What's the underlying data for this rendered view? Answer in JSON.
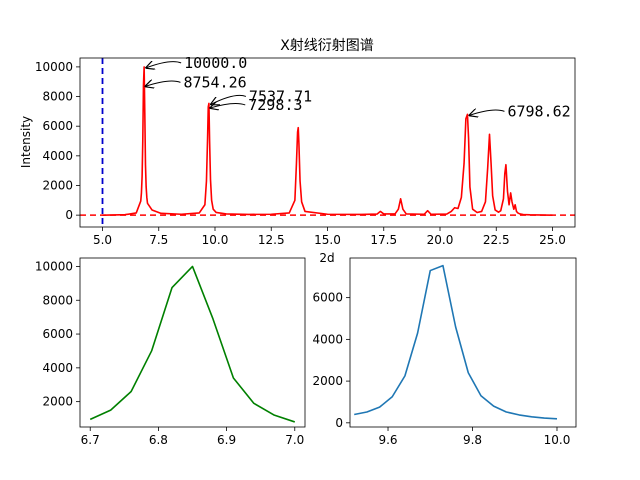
{
  "chart_data": [
    {
      "type": "line",
      "title": "X射线衍射图谱",
      "xlabel": "",
      "ylabel": "Intensity",
      "xlim": [
        4.0,
        26.0
      ],
      "ylim": [
        -800,
        10600
      ],
      "xticks": [
        5.0,
        7.5,
        10.0,
        12.5,
        15.0,
        17.5,
        20.0,
        22.5,
        25.0
      ],
      "xtick_labels": [
        "5.0",
        "7.5",
        "10.0",
        "12.5",
        "15.0",
        "17.5",
        "20.0",
        "22.5",
        "25.0"
      ],
      "yticks": [
        0,
        2000,
        4000,
        6000,
        8000,
        10000
      ],
      "ytick_labels": [
        "0",
        "2000",
        "4000",
        "6000",
        "8000",
        "10000"
      ],
      "series": [
        {
          "color": "#ff0000",
          "x": [
            5.0,
            6.0,
            6.5,
            6.7,
            6.73,
            6.76,
            6.79,
            6.82,
            6.85,
            6.88,
            6.91,
            6.94,
            6.97,
            7.0,
            7.2,
            7.6,
            8.5,
            9.3,
            9.55,
            9.62,
            9.67,
            9.7,
            9.73,
            9.76,
            9.8,
            9.85,
            9.92,
            10.05,
            10.5,
            11.5,
            12.5,
            13.3,
            13.55,
            13.62,
            13.67,
            13.7,
            13.73,
            13.78,
            13.85,
            14.0,
            15.0,
            16.5,
            17.2,
            17.35,
            17.5,
            18.0,
            18.15,
            18.25,
            18.35,
            18.5,
            19.3,
            19.45,
            19.6,
            20.3,
            20.5,
            20.65,
            20.8,
            20.95,
            21.07,
            21.15,
            21.22,
            21.27,
            21.33,
            21.45,
            21.65,
            21.85,
            22.02,
            22.12,
            22.2,
            22.27,
            22.34,
            22.45,
            22.6,
            22.7,
            22.82,
            22.88,
            22.93,
            23.0,
            23.07,
            23.14,
            23.2,
            23.28,
            23.34,
            23.4,
            23.46,
            23.55,
            23.7,
            24.0,
            25.0
          ],
          "y": [
            0,
            30,
            150,
            950,
            1500,
            2600,
            5000,
            8754,
            10000,
            6900,
            3400,
            1900,
            1200,
            800,
            350,
            120,
            60,
            150,
            700,
            2300,
            5200,
            7298,
            7537,
            5000,
            2400,
            1000,
            400,
            180,
            80,
            50,
            60,
            150,
            1000,
            3500,
            5600,
            5900,
            4800,
            2300,
            900,
            250,
            60,
            50,
            70,
            250,
            80,
            80,
            400,
            1100,
            400,
            80,
            60,
            300,
            60,
            70,
            250,
            500,
            450,
            1200,
            3500,
            6500,
            6799,
            5200,
            1900,
            400,
            180,
            250,
            900,
            3200,
            5450,
            3500,
            1300,
            350,
            200,
            300,
            1100,
            2800,
            3400,
            1600,
            700,
            1500,
            900,
            400,
            700,
            250,
            150,
            80,
            40,
            20,
            0
          ]
        }
      ],
      "hlines": [
        {
          "y": 0,
          "color": "#ff0000",
          "style": "dashed"
        }
      ],
      "vlines": [
        {
          "x": 5.0,
          "color": "#0000cc",
          "style": "dashed"
        }
      ],
      "annotations": [
        {
          "text": "10000.0",
          "x": 6.85,
          "y": 10000
        },
        {
          "text": "8754.26",
          "x": 6.82,
          "y": 8754
        },
        {
          "text": "7537.71",
          "x": 9.73,
          "y": 7537
        },
        {
          "text": "7298.3",
          "x": 9.7,
          "y": 7298
        },
        {
          "text": "6798.62",
          "x": 21.22,
          "y": 6799
        }
      ]
    },
    {
      "type": "line",
      "title": "",
      "xlabel": "",
      "ylabel": "",
      "xlim": [
        6.685,
        7.015
      ],
      "ylim": [
        500,
        10500
      ],
      "xticks": [
        6.7,
        6.8,
        6.9,
        7.0
      ],
      "xtick_labels": [
        "6.7",
        "6.8",
        "6.9",
        "7.0"
      ],
      "yticks": [
        2000,
        4000,
        6000,
        8000,
        10000
      ],
      "ytick_labels": [
        "2000",
        "4000",
        "6000",
        "8000",
        "10000"
      ],
      "series": [
        {
          "color": "#008000",
          "x": [
            6.7,
            6.73,
            6.76,
            6.79,
            6.82,
            6.85,
            6.88,
            6.91,
            6.94,
            6.97,
            7.0
          ],
          "y": [
            950,
            1500,
            2600,
            5000,
            8754,
            10000,
            6900,
            3400,
            1900,
            1200,
            800
          ]
        }
      ]
    },
    {
      "type": "line",
      "title": "2d",
      "xlabel": "",
      "ylabel": "",
      "xlim": [
        9.51,
        10.045
      ],
      "ylim": [
        -200,
        7900
      ],
      "xticks": [
        9.6,
        9.8,
        10.0
      ],
      "xtick_labels": [
        "9.6",
        "9.8",
        "10.0"
      ],
      "yticks": [
        0,
        2000,
        4000,
        6000
      ],
      "ytick_labels": [
        "0",
        "2000",
        "4000",
        "6000"
      ],
      "series": [
        {
          "color": "#1f77b4",
          "x": [
            9.52,
            9.55,
            9.58,
            9.61,
            9.64,
            9.67,
            9.7,
            9.73,
            9.76,
            9.79,
            9.82,
            9.85,
            9.88,
            9.91,
            9.94,
            9.97,
            10.0
          ],
          "y": [
            400,
            520,
            750,
            1250,
            2250,
            4300,
            7298,
            7537,
            4600,
            2400,
            1300,
            800,
            520,
            380,
            290,
            230,
            190
          ]
        }
      ]
    }
  ]
}
